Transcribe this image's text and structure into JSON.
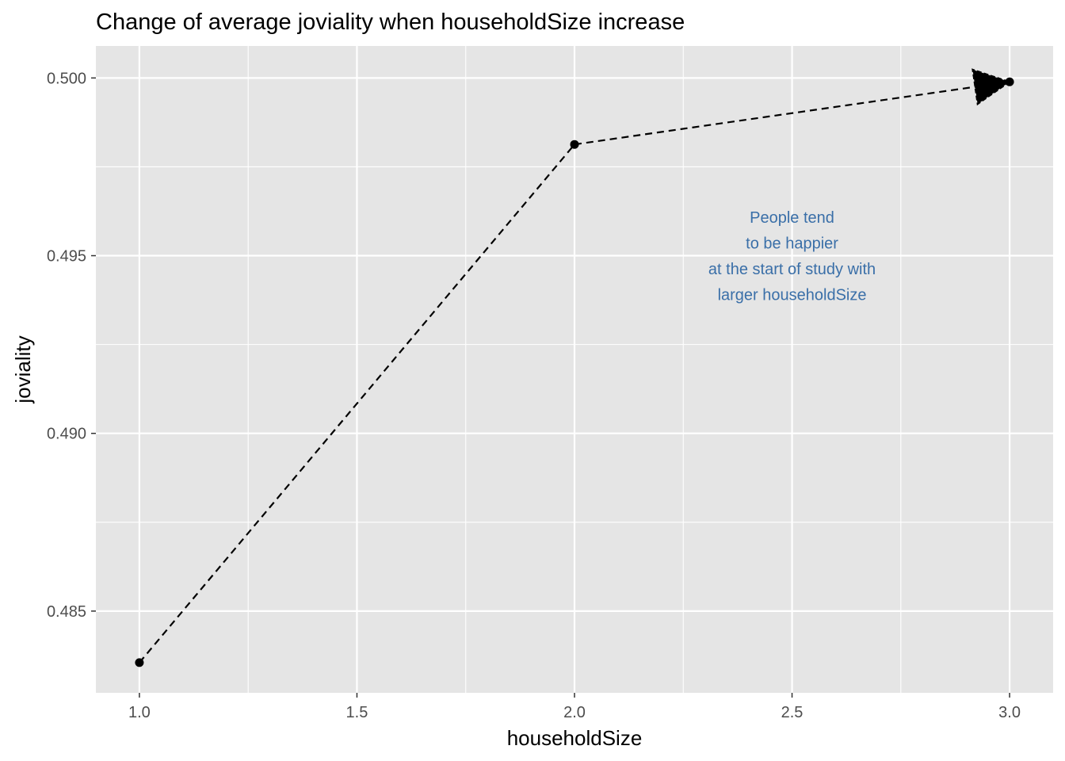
{
  "chart_data": {
    "type": "line",
    "title": "Change of average joviality when householdSize increase",
    "xlabel": "householdSize",
    "ylabel": "joviality",
    "xlim": [
      0.9,
      3.1
    ],
    "ylim": [
      0.4827,
      0.5009
    ],
    "x_ticks": [
      1.0,
      1.5,
      2.0,
      2.5,
      3.0
    ],
    "x_tick_labels": [
      "1.0",
      "1.5",
      "2.0",
      "2.5",
      "3.0"
    ],
    "y_ticks": [
      0.485,
      0.49,
      0.495,
      0.5
    ],
    "y_tick_labels": [
      "0.485",
      "0.490",
      "0.495",
      "0.500"
    ],
    "grid": true,
    "line_style": "dashed",
    "arrow_at_end": true,
    "points": [
      {
        "x": 1,
        "y": 0.48355
      },
      {
        "x": 2,
        "y": 0.49813
      },
      {
        "x": 3,
        "y": 0.49989
      }
    ],
    "annotation": {
      "lines": [
        "People tend",
        "to be happier",
        "at the start of study with",
        "larger householdSize"
      ],
      "x": 2.5,
      "y": 0.495,
      "color": "#3a6fa8"
    },
    "colors": {
      "panel_background": "#e5e5e5",
      "grid": "#ffffff",
      "line": "#000000"
    }
  }
}
